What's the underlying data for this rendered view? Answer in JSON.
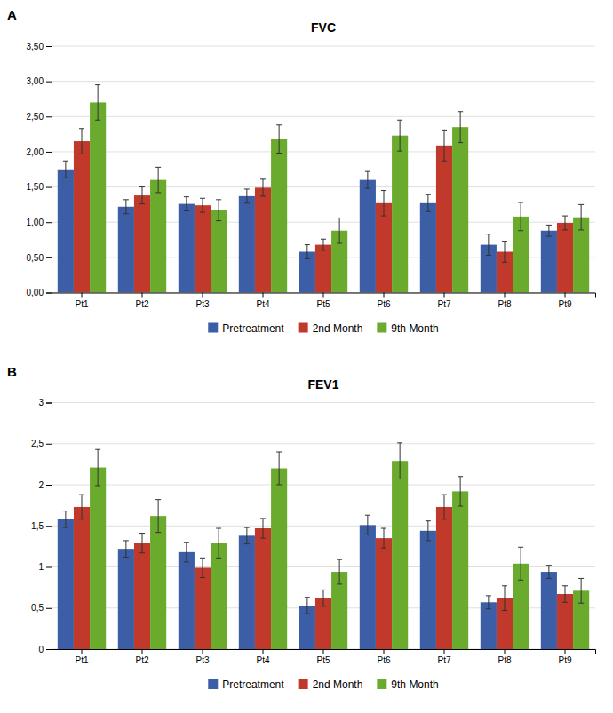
{
  "chart_data": [
    {
      "type": "bar",
      "title": "FVC",
      "annotations": [
        "A"
      ],
      "categories": [
        "Pt1",
        "Pt2",
        "Pt3",
        "Pt4",
        "Pt5",
        "Pt6",
        "Pt7",
        "Pt8",
        "Pt9"
      ],
      "series": [
        {
          "name": "Pretreatment",
          "color": "#3B5EA6",
          "values": [
            1.75,
            1.22,
            1.26,
            1.37,
            0.58,
            1.6,
            1.27,
            0.68,
            0.88
          ],
          "errors": [
            0.12,
            0.1,
            0.1,
            0.1,
            0.1,
            0.12,
            0.12,
            0.15,
            0.08
          ]
        },
        {
          "name": "2nd Month",
          "color": "#C0392B",
          "values": [
            2.15,
            1.38,
            1.24,
            1.49,
            0.68,
            1.27,
            2.09,
            0.58,
            0.99
          ],
          "errors": [
            0.18,
            0.12,
            0.1,
            0.12,
            0.08,
            0.18,
            0.22,
            0.15,
            0.1
          ]
        },
        {
          "name": "9th Month",
          "color": "#6AAB2E",
          "values": [
            2.7,
            1.6,
            1.17,
            2.18,
            0.88,
            2.23,
            2.35,
            1.08,
            1.07
          ],
          "errors": [
            0.25,
            0.18,
            0.15,
            0.2,
            0.18,
            0.22,
            0.22,
            0.2,
            0.18
          ]
        }
      ],
      "ylim": [
        0,
        3.5
      ],
      "yticks": [
        {
          "value": 0.0,
          "label": "0,00"
        },
        {
          "value": 0.5,
          "label": "0,50"
        },
        {
          "value": 1.0,
          "label": "1,00"
        },
        {
          "value": 1.5,
          "label": "1,50"
        },
        {
          "value": 2.0,
          "label": "2,00"
        },
        {
          "value": 2.5,
          "label": "2,50"
        },
        {
          "value": 3.0,
          "label": "3,00"
        },
        {
          "value": 3.5,
          "label": "3,50"
        }
      ],
      "grid": true,
      "legend": "bottom"
    },
    {
      "type": "bar",
      "title": "FEV1",
      "annotations": [
        "B"
      ],
      "categories": [
        "Pt1",
        "Pt2",
        "Pt3",
        "Pt4",
        "Pt5",
        "Pt6",
        "Pt7",
        "Pt8",
        "Pt9"
      ],
      "series": [
        {
          "name": "Pretreatment",
          "color": "#3B5EA6",
          "values": [
            1.58,
            1.22,
            1.18,
            1.38,
            0.53,
            1.51,
            1.44,
            0.57,
            0.94
          ],
          "errors": [
            0.1,
            0.1,
            0.12,
            0.1,
            0.1,
            0.12,
            0.12,
            0.08,
            0.08
          ]
        },
        {
          "name": "2nd Month",
          "color": "#C0392B",
          "values": [
            1.73,
            1.29,
            0.99,
            1.47,
            0.62,
            1.35,
            1.73,
            0.62,
            0.67
          ],
          "errors": [
            0.15,
            0.12,
            0.12,
            0.12,
            0.1,
            0.12,
            0.15,
            0.15,
            0.1
          ]
        },
        {
          "name": "9th Month",
          "color": "#6AAB2E",
          "values": [
            2.21,
            1.62,
            1.29,
            2.2,
            0.94,
            2.29,
            1.92,
            1.04,
            0.71
          ],
          "errors": [
            0.22,
            0.2,
            0.18,
            0.2,
            0.15,
            0.22,
            0.18,
            0.2,
            0.15
          ]
        }
      ],
      "ylim": [
        0,
        3.0
      ],
      "yticks": [
        0,
        {
          "value": 0.5,
          "label": "0,5"
        },
        1,
        {
          "value": 1.5,
          "label": "1,5"
        },
        2,
        {
          "value": 2.5,
          "label": "2,5"
        },
        3
      ],
      "grid": true,
      "legend": "bottom"
    }
  ]
}
